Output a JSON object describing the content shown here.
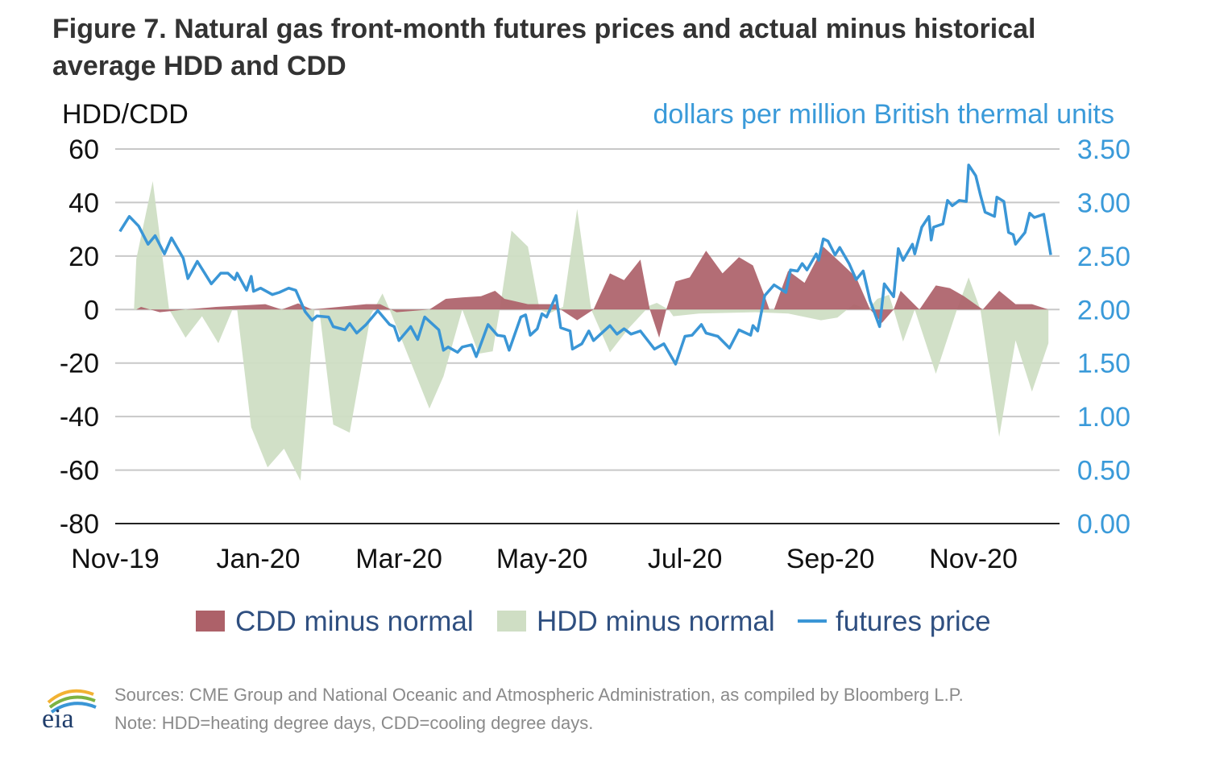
{
  "title_line1": "Figure 7. Natural gas front-month futures prices and actual minus historical",
  "title_line2": "average HDD and CDD",
  "footer": {
    "sources": "Sources: CME Group and National Oceanic and Atmospheric Administration, as compiled by Bloomberg L.P.",
    "note": "Note: HDD=heating degree days, CDD=cooling degree days.",
    "logo_text": "eia"
  },
  "colors": {
    "cdd": "#ad6169",
    "hdd": "#cfdec4",
    "price": "#3a96d6",
    "right_axis": "#3a9ad9"
  },
  "chart_data": {
    "type": "area+line",
    "ylabel_left": "HDD/CDD",
    "ylabel_right": "dollars per million British thermal units",
    "ylim_left": [
      -80,
      60
    ],
    "ylim_right": [
      0,
      3.5
    ],
    "yticks_left": [
      "60",
      "40",
      "20",
      "0",
      "-20",
      "-40",
      "-60",
      "-80"
    ],
    "yticks_right": [
      "3.50",
      "3.00",
      "2.50",
      "2.00",
      "1.50",
      "1.00",
      "0.50",
      "0.00"
    ],
    "xticks": [
      "Nov-19",
      "Jan-20",
      "Mar-20",
      "May-20",
      "Jul-20",
      "Sep-20",
      "Nov-20"
    ],
    "xtick_dates": [
      "2019-11-01",
      "2020-01-01",
      "2020-03-01",
      "2020-05-01",
      "2020-07-01",
      "2020-09-01",
      "2020-11-01"
    ],
    "grid": true,
    "legend_position": "bottom",
    "series": [
      {
        "name": "CDD minus normal",
        "type": "area",
        "axis": "left",
        "points": [
          [
            "2019-11-10",
            0
          ],
          [
            "2019-11-12",
            1
          ],
          [
            "2019-11-20",
            -1
          ],
          [
            "2019-12-01",
            0
          ],
          [
            "2019-12-14",
            1
          ],
          [
            "2020-01-04",
            2
          ],
          [
            "2020-01-11",
            0
          ],
          [
            "2020-01-18",
            2.3
          ],
          [
            "2020-01-24",
            0
          ],
          [
            "2020-02-16",
            2
          ],
          [
            "2020-02-22",
            2
          ],
          [
            "2020-02-29",
            -1
          ],
          [
            "2020-03-14",
            0
          ],
          [
            "2020-03-21",
            4
          ],
          [
            "2020-03-28",
            4.5
          ],
          [
            "2020-04-05",
            5
          ],
          [
            "2020-04-11",
            7
          ],
          [
            "2020-04-15",
            4
          ],
          [
            "2020-04-25",
            2
          ],
          [
            "2020-05-01",
            2
          ],
          [
            "2020-05-07",
            2
          ],
          [
            "2020-05-09",
            0
          ],
          [
            "2020-05-16",
            -4
          ],
          [
            "2020-05-23",
            0
          ],
          [
            "2020-05-30",
            13.5
          ],
          [
            "2020-06-05",
            11
          ],
          [
            "2020-06-12",
            18.7
          ],
          [
            "2020-06-16",
            0
          ],
          [
            "2020-06-20",
            -10.5
          ],
          [
            "2020-06-23",
            0
          ],
          [
            "2020-06-27",
            10.5
          ],
          [
            "2020-07-03",
            12
          ],
          [
            "2020-07-10",
            22
          ],
          [
            "2020-07-17",
            13.5
          ],
          [
            "2020-07-24",
            19.6
          ],
          [
            "2020-07-30",
            16.5
          ],
          [
            "2020-08-04",
            5
          ],
          [
            "2020-08-06",
            0
          ],
          [
            "2020-08-08",
            0
          ],
          [
            "2020-08-14",
            14.5
          ],
          [
            "2020-08-21",
            10
          ],
          [
            "2020-08-29",
            23.5
          ],
          [
            "2020-09-06",
            17
          ],
          [
            "2020-09-12",
            12
          ],
          [
            "2020-09-18",
            0
          ],
          [
            "2020-09-23",
            -5
          ],
          [
            "2020-09-28",
            0
          ],
          [
            "2020-10-01",
            7
          ],
          [
            "2020-10-09",
            0
          ],
          [
            "2020-10-16",
            9
          ],
          [
            "2020-10-22",
            8
          ],
          [
            "2020-10-28",
            5
          ],
          [
            "2020-11-05",
            0
          ],
          [
            "2020-11-12",
            7
          ],
          [
            "2020-11-19",
            2
          ],
          [
            "2020-11-26",
            2
          ],
          [
            "2020-12-03",
            0
          ]
        ]
      },
      {
        "name": "HDD minus normal",
        "type": "area",
        "axis": "left",
        "points": [
          [
            "2019-11-09",
            0
          ],
          [
            "2019-11-10",
            19
          ],
          [
            "2019-11-17",
            48
          ],
          [
            "2019-11-24",
            0
          ],
          [
            "2019-12-01",
            -10.5
          ],
          [
            "2019-12-08",
            -2.5
          ],
          [
            "2019-12-15",
            -12.6
          ],
          [
            "2019-12-21",
            0
          ],
          [
            "2019-12-23",
            0
          ],
          [
            "2019-12-29",
            -44
          ],
          [
            "2020-01-05",
            -59
          ],
          [
            "2020-01-12",
            -52
          ],
          [
            "2020-01-19",
            -64
          ],
          [
            "2020-01-25",
            0
          ],
          [
            "2020-01-27",
            0
          ],
          [
            "2020-02-02",
            -43
          ],
          [
            "2020-02-09",
            -46
          ],
          [
            "2020-02-18",
            -2
          ],
          [
            "2020-02-23",
            6
          ],
          [
            "2020-02-26",
            0
          ],
          [
            "2020-03-14",
            -37
          ],
          [
            "2020-03-20",
            -25
          ],
          [
            "2020-03-28",
            0
          ],
          [
            "2020-04-04",
            -16.5
          ],
          [
            "2020-04-10",
            -15.6
          ],
          [
            "2020-04-13",
            0
          ],
          [
            "2020-04-18",
            29.5
          ],
          [
            "2020-04-25",
            23.5
          ],
          [
            "2020-04-30",
            0
          ],
          [
            "2020-05-04",
            -1.5
          ],
          [
            "2020-05-10",
            1
          ],
          [
            "2020-05-16",
            37.6
          ],
          [
            "2020-05-22",
            0
          ],
          [
            "2020-05-30",
            -16
          ],
          [
            "2020-06-07",
            -7
          ],
          [
            "2020-06-16",
            1.5
          ],
          [
            "2020-06-19",
            2.5
          ],
          [
            "2020-06-24",
            0
          ],
          [
            "2020-06-26",
            -2.5
          ],
          [
            "2020-07-07",
            -1.5
          ],
          [
            "2020-07-31",
            -1
          ],
          [
            "2020-08-14",
            -1.5
          ],
          [
            "2020-08-28",
            -4
          ],
          [
            "2020-09-04",
            -3
          ],
          [
            "2020-09-11",
            2
          ],
          [
            "2020-09-17",
            0
          ],
          [
            "2020-09-21",
            4
          ],
          [
            "2020-09-26",
            5.5
          ],
          [
            "2020-09-28",
            0
          ],
          [
            "2020-10-02",
            -12
          ],
          [
            "2020-10-07",
            0
          ],
          [
            "2020-10-16",
            -24
          ],
          [
            "2020-10-25",
            0
          ],
          [
            "2020-10-30",
            12
          ],
          [
            "2020-11-04",
            0
          ],
          [
            "2020-11-12",
            -47.6
          ],
          [
            "2020-11-19",
            -11.5
          ],
          [
            "2020-11-26",
            -30.7
          ],
          [
            "2020-12-03",
            -12.6
          ]
        ]
      },
      {
        "name": "futures price",
        "type": "line",
        "axis": "right",
        "points": [
          [
            "2019-11-03",
            2.73
          ],
          [
            "2019-11-07",
            2.87
          ],
          [
            "2019-11-11",
            2.78
          ],
          [
            "2019-11-15",
            2.61
          ],
          [
            "2019-11-18",
            2.69
          ],
          [
            "2019-11-22",
            2.52
          ],
          [
            "2019-11-25",
            2.67
          ],
          [
            "2019-11-30",
            2.48
          ],
          [
            "2019-12-02",
            2.29
          ],
          [
            "2019-12-06",
            2.45
          ],
          [
            "2019-12-12",
            2.24
          ],
          [
            "2019-12-16",
            2.34
          ],
          [
            "2019-12-19",
            2.34
          ],
          [
            "2019-12-22",
            2.28
          ],
          [
            "2019-12-23",
            2.34
          ],
          [
            "2019-12-27",
            2.18
          ],
          [
            "2019-12-29",
            2.31
          ],
          [
            "2019-12-30",
            2.17
          ],
          [
            "2020-01-02",
            2.2
          ],
          [
            "2020-01-07",
            2.14
          ],
          [
            "2020-01-10",
            2.16
          ],
          [
            "2020-01-14",
            2.2
          ],
          [
            "2020-01-17",
            2.18
          ],
          [
            "2020-01-21",
            1.98
          ],
          [
            "2020-01-24",
            1.9
          ],
          [
            "2020-01-26",
            1.94
          ],
          [
            "2020-01-31",
            1.93
          ],
          [
            "2020-02-02",
            1.84
          ],
          [
            "2020-02-07",
            1.81
          ],
          [
            "2020-02-09",
            1.87
          ],
          [
            "2020-02-12",
            1.78
          ],
          [
            "2020-02-16",
            1.86
          ],
          [
            "2020-02-21",
            1.99
          ],
          [
            "2020-02-26",
            1.86
          ],
          [
            "2020-02-28",
            1.84
          ],
          [
            "2020-03-01",
            1.71
          ],
          [
            "2020-03-06",
            1.84
          ],
          [
            "2020-03-09",
            1.72
          ],
          [
            "2020-03-12",
            1.93
          ],
          [
            "2020-03-15",
            1.87
          ],
          [
            "2020-03-18",
            1.81
          ],
          [
            "2020-03-20",
            1.62
          ],
          [
            "2020-03-22",
            1.65
          ],
          [
            "2020-03-26",
            1.6
          ],
          [
            "2020-03-28",
            1.65
          ],
          [
            "2020-04-01",
            1.67
          ],
          [
            "2020-04-03",
            1.56
          ],
          [
            "2020-04-08",
            1.86
          ],
          [
            "2020-04-12",
            1.76
          ],
          [
            "2020-04-15",
            1.75
          ],
          [
            "2020-04-17",
            1.62
          ],
          [
            "2020-04-22",
            1.93
          ],
          [
            "2020-04-24",
            1.95
          ],
          [
            "2020-04-26",
            1.76
          ],
          [
            "2020-04-29",
            1.82
          ],
          [
            "2020-05-01",
            1.96
          ],
          [
            "2020-05-03",
            1.93
          ],
          [
            "2020-05-07",
            2.13
          ],
          [
            "2020-05-09",
            1.83
          ],
          [
            "2020-05-13",
            1.8
          ],
          [
            "2020-05-14",
            1.63
          ],
          [
            "2020-05-18",
            1.68
          ],
          [
            "2020-05-21",
            1.8
          ],
          [
            "2020-05-23",
            1.71
          ],
          [
            "2020-05-30",
            1.85
          ],
          [
            "2020-06-02",
            1.77
          ],
          [
            "2020-06-05",
            1.82
          ],
          [
            "2020-06-08",
            1.77
          ],
          [
            "2020-06-12",
            1.8
          ],
          [
            "2020-06-18",
            1.63
          ],
          [
            "2020-06-22",
            1.68
          ],
          [
            "2020-06-27",
            1.49
          ],
          [
            "2020-07-01",
            1.75
          ],
          [
            "2020-07-04",
            1.76
          ],
          [
            "2020-07-08",
            1.86
          ],
          [
            "2020-07-10",
            1.78
          ],
          [
            "2020-07-15",
            1.75
          ],
          [
            "2020-07-20",
            1.64
          ],
          [
            "2020-07-24",
            1.81
          ],
          [
            "2020-07-29",
            1.76
          ],
          [
            "2020-07-30",
            1.85
          ],
          [
            "2020-08-01",
            1.8
          ],
          [
            "2020-08-04",
            2.13
          ],
          [
            "2020-08-08",
            2.23
          ],
          [
            "2020-08-13",
            2.16
          ],
          [
            "2020-08-15",
            2.37
          ],
          [
            "2020-08-18",
            2.36
          ],
          [
            "2020-08-20",
            2.43
          ],
          [
            "2020-08-22",
            2.37
          ],
          [
            "2020-08-26",
            2.52
          ],
          [
            "2020-08-27",
            2.46
          ],
          [
            "2020-08-29",
            2.66
          ],
          [
            "2020-08-31",
            2.64
          ],
          [
            "2020-09-03",
            2.51
          ],
          [
            "2020-09-05",
            2.58
          ],
          [
            "2020-09-09",
            2.43
          ],
          [
            "2020-09-12",
            2.28
          ],
          [
            "2020-09-15",
            2.36
          ],
          [
            "2020-09-18",
            2.08
          ],
          [
            "2020-09-22",
            1.84
          ],
          [
            "2020-09-24",
            2.24
          ],
          [
            "2020-09-28",
            2.12
          ],
          [
            "2020-09-30",
            2.57
          ],
          [
            "2020-10-02",
            2.46
          ],
          [
            "2020-10-06",
            2.61
          ],
          [
            "2020-10-07",
            2.52
          ],
          [
            "2020-10-10",
            2.77
          ],
          [
            "2020-10-13",
            2.87
          ],
          [
            "2020-10-14",
            2.65
          ],
          [
            "2020-10-15",
            2.77
          ],
          [
            "2020-10-19",
            2.8
          ],
          [
            "2020-10-21",
            3.02
          ],
          [
            "2020-10-23",
            2.97
          ],
          [
            "2020-10-26",
            3.02
          ],
          [
            "2020-10-29",
            3.01
          ],
          [
            "2020-10-30",
            3.35
          ],
          [
            "2020-11-02",
            3.25
          ],
          [
            "2020-11-04",
            3.07
          ],
          [
            "2020-11-06",
            2.91
          ],
          [
            "2020-11-10",
            2.87
          ],
          [
            "2020-11-11",
            3.05
          ],
          [
            "2020-11-14",
            3.01
          ],
          [
            "2020-11-16",
            2.72
          ],
          [
            "2020-11-18",
            2.7
          ],
          [
            "2020-11-19",
            2.61
          ],
          [
            "2020-11-23",
            2.72
          ],
          [
            "2020-11-25",
            2.9
          ],
          [
            "2020-11-27",
            2.86
          ],
          [
            "2020-12-01",
            2.89
          ],
          [
            "2020-12-04",
            2.51
          ]
        ]
      }
    ]
  }
}
